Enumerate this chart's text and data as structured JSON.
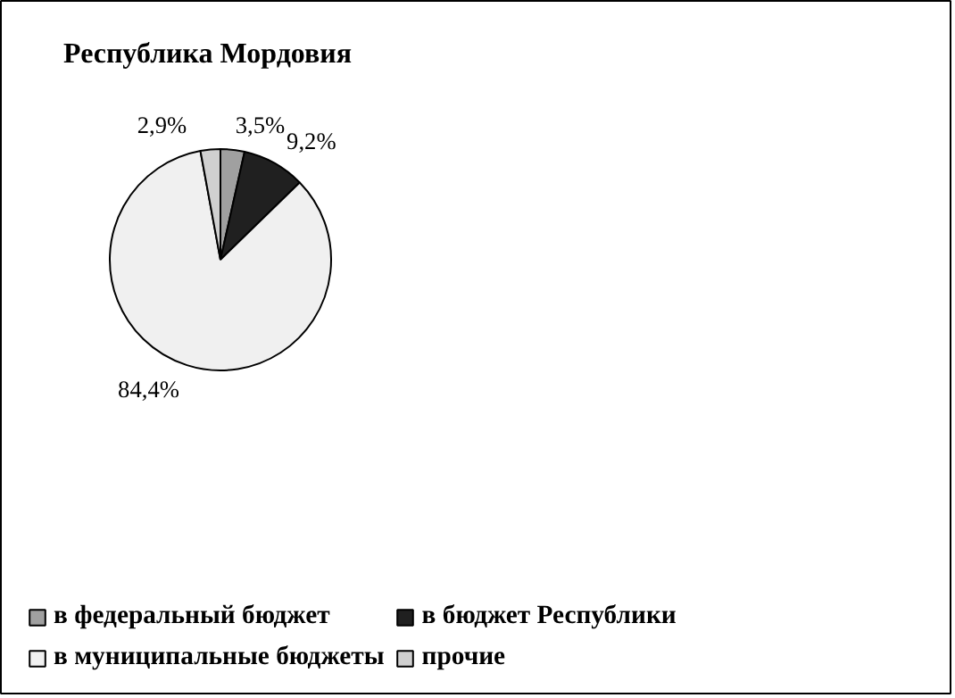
{
  "chart_data": {
    "type": "pie",
    "title": "Республика Мордовия",
    "categories": [
      "в федеральный бюджет",
      "в бюджет Республики",
      "в муниципальные бюджеты",
      "прочие"
    ],
    "values": [
      3.5,
      9.2,
      84.4,
      2.9
    ],
    "value_labels": [
      "3,5%",
      "9,2%",
      "84,4%",
      "2,9%"
    ],
    "colors": [
      "#a0a0a0",
      "#202020",
      "#f0f0f0",
      "#d0d0d0"
    ],
    "legend": "bottom"
  }
}
